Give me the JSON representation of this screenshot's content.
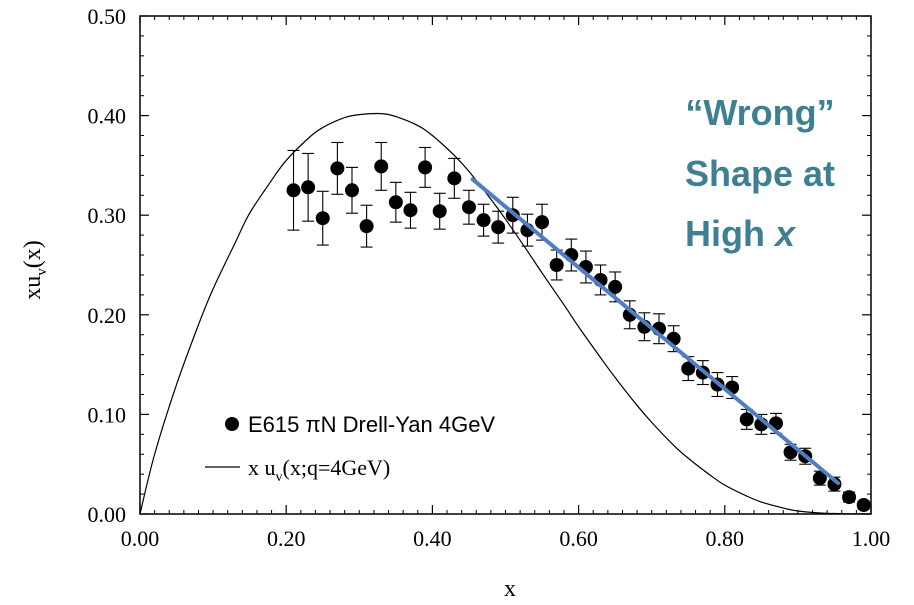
{
  "colors": {
    "annotation": "#3f7f92",
    "trend_line": "#4f7fc0",
    "data": "#000000"
  },
  "chart_data": {
    "type": "scatter",
    "xlabel": "x",
    "ylabel": "xu",
    "ylabel_sub": "v",
    "ylabel_suffix": "(x)",
    "xlim": [
      0.0,
      1.0
    ],
    "ylim": [
      0.0,
      0.5
    ],
    "x_ticks": [
      0.0,
      0.2,
      0.4,
      0.6,
      0.8,
      1.0
    ],
    "x_tick_labels": [
      "0.00",
      "0.20",
      "0.40",
      "0.60",
      "0.80",
      "1.00"
    ],
    "y_ticks": [
      0.0,
      0.1,
      0.2,
      0.3,
      0.4,
      0.5
    ],
    "y_tick_labels": [
      "0.00",
      "0.10",
      "0.20",
      "0.30",
      "0.40",
      "0.50"
    ],
    "legend_position": "bottom-left",
    "legend": [
      {
        "symbol": "dot",
        "label": "E615 πN Drell-Yan 4GeV"
      },
      {
        "symbol": "line",
        "label_pre": "x u",
        "label_sub": "v",
        "label_post": "(x;q=4GeV)"
      }
    ],
    "series": [
      {
        "name": "E615 πN Drell-Yan 4GeV",
        "kind": "points",
        "x": [
          0.21,
          0.23,
          0.25,
          0.27,
          0.29,
          0.31,
          0.33,
          0.35,
          0.37,
          0.39,
          0.41,
          0.43,
          0.45,
          0.47,
          0.49,
          0.51,
          0.53,
          0.55,
          0.57,
          0.59,
          0.61,
          0.63,
          0.65,
          0.67,
          0.69,
          0.71,
          0.73,
          0.75,
          0.77,
          0.79,
          0.81,
          0.83,
          0.85,
          0.87,
          0.89,
          0.91,
          0.93,
          0.95,
          0.97,
          0.99
        ],
        "y": [
          0.325,
          0.328,
          0.297,
          0.347,
          0.325,
          0.289,
          0.349,
          0.313,
          0.305,
          0.348,
          0.304,
          0.337,
          0.308,
          0.295,
          0.288,
          0.3,
          0.285,
          0.293,
          0.25,
          0.26,
          0.248,
          0.235,
          0.228,
          0.2,
          0.188,
          0.186,
          0.176,
          0.146,
          0.142,
          0.13,
          0.127,
          0.095,
          0.09,
          0.091,
          0.062,
          0.058,
          0.036,
          0.03,
          0.017,
          0.009
        ],
        "err": [
          0.04,
          0.034,
          0.027,
          0.026,
          0.023,
          0.021,
          0.024,
          0.02,
          0.018,
          0.02,
          0.018,
          0.02,
          0.017,
          0.016,
          0.016,
          0.018,
          0.016,
          0.018,
          0.015,
          0.016,
          0.016,
          0.015,
          0.015,
          0.014,
          0.014,
          0.015,
          0.013,
          0.012,
          0.012,
          0.012,
          0.011,
          0.01,
          0.01,
          0.01,
          0.008,
          0.008,
          0.007,
          0.007,
          0.005,
          0.004
        ]
      },
      {
        "name": "x u_v(x;q=4GeV)",
        "kind": "curve",
        "x": [
          0.0,
          0.02,
          0.05,
          0.08,
          0.1,
          0.13,
          0.15,
          0.18,
          0.2,
          0.23,
          0.25,
          0.28,
          0.3,
          0.33,
          0.35,
          0.38,
          0.4,
          0.43,
          0.45,
          0.48,
          0.5,
          0.53,
          0.55,
          0.58,
          0.6,
          0.63,
          0.65,
          0.68,
          0.7,
          0.73,
          0.75,
          0.78,
          0.8,
          0.83,
          0.85,
          0.88,
          0.9,
          0.93,
          0.95,
          0.97,
          1.0
        ],
        "y": [
          0.0,
          0.06,
          0.13,
          0.19,
          0.226,
          0.272,
          0.302,
          0.335,
          0.355,
          0.377,
          0.388,
          0.398,
          0.401,
          0.402,
          0.399,
          0.39,
          0.38,
          0.36,
          0.344,
          0.316,
          0.296,
          0.264,
          0.242,
          0.21,
          0.188,
          0.157,
          0.137,
          0.109,
          0.092,
          0.069,
          0.056,
          0.039,
          0.029,
          0.018,
          0.012,
          0.006,
          0.003,
          0.001,
          0.0005,
          0.0002,
          0.0
        ]
      },
      {
        "name": "trend",
        "kind": "overlay-line",
        "x": [
          0.455,
          0.955
        ],
        "y": [
          0.336,
          0.031
        ]
      }
    ],
    "annotation": {
      "line1": "“Wrong”",
      "line2": "Shape at",
      "line3_text": "High ",
      "line3_italic": "x"
    }
  }
}
